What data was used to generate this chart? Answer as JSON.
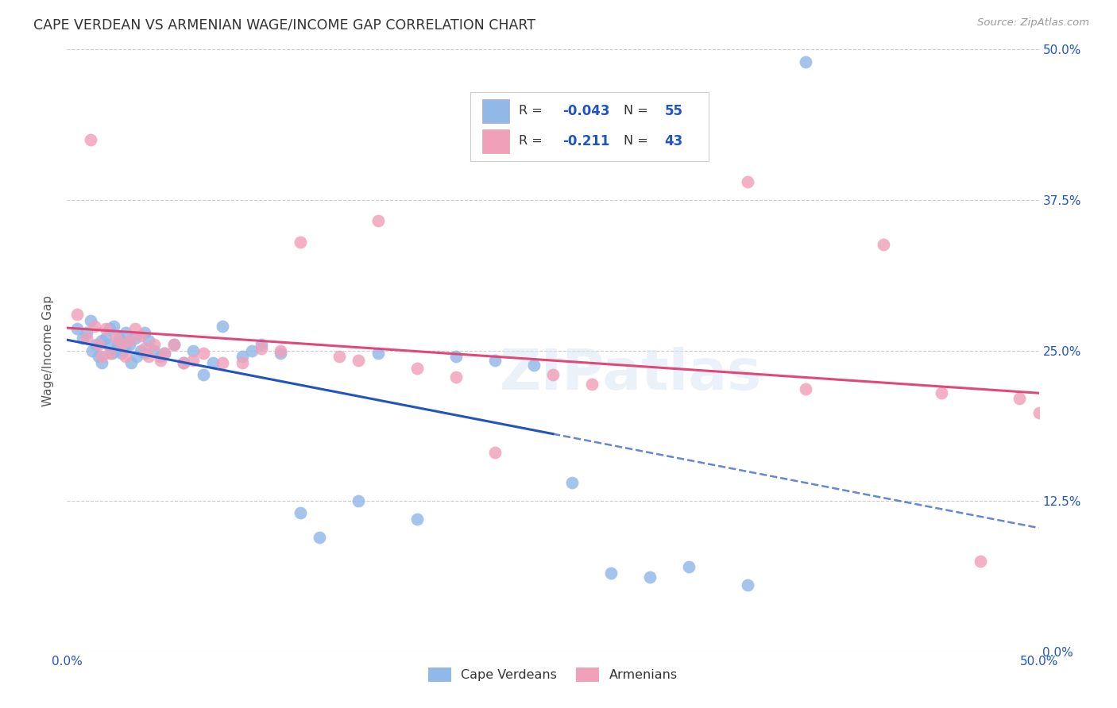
{
  "title": "CAPE VERDEAN VS ARMENIAN WAGE/INCOME GAP CORRELATION CHART",
  "source": "Source: ZipAtlas.com",
  "ylabel": "Wage/Income Gap",
  "xlim": [
    0.0,
    0.5
  ],
  "ylim": [
    0.0,
    0.5
  ],
  "cv_R": -0.043,
  "cv_N": 55,
  "arm_R": -0.211,
  "arm_N": 43,
  "cv_color": "#92b8e8",
  "arm_color": "#f0a0b8",
  "line_cv_color": "#2255bb",
  "line_arm_color": "#e04878",
  "watermark": "ZIPatlas",
  "bg_color": "#ffffff",
  "legend_color": "#2255bb",
  "cv_x": [
    0.005,
    0.008,
    0.01,
    0.012,
    0.013,
    0.015,
    0.016,
    0.018,
    0.018,
    0.02,
    0.021,
    0.022,
    0.023,
    0.024,
    0.025,
    0.026,
    0.027,
    0.028,
    0.03,
    0.03,
    0.032,
    0.033,
    0.035,
    0.036,
    0.038,
    0.04,
    0.04,
    0.042,
    0.045,
    0.048,
    0.05,
    0.055,
    0.06,
    0.065,
    0.07,
    0.075,
    0.08,
    0.09,
    0.095,
    0.1,
    0.11,
    0.12,
    0.13,
    0.15,
    0.16,
    0.18,
    0.2,
    0.22,
    0.24,
    0.26,
    0.28,
    0.3,
    0.32,
    0.35,
    0.38
  ],
  "cv_y": [
    0.268,
    0.26,
    0.265,
    0.275,
    0.25,
    0.255,
    0.245,
    0.258,
    0.24,
    0.26,
    0.255,
    0.268,
    0.248,
    0.27,
    0.25,
    0.255,
    0.26,
    0.248,
    0.265,
    0.255,
    0.255,
    0.24,
    0.26,
    0.245,
    0.25,
    0.265,
    0.248,
    0.258,
    0.25,
    0.245,
    0.248,
    0.255,
    0.24,
    0.25,
    0.23,
    0.24,
    0.27,
    0.245,
    0.25,
    0.255,
    0.248,
    0.115,
    0.095,
    0.125,
    0.248,
    0.11,
    0.245,
    0.242,
    0.238,
    0.14,
    0.065,
    0.062,
    0.07,
    0.055,
    0.49
  ],
  "arm_x": [
    0.005,
    0.01,
    0.012,
    0.014,
    0.016,
    0.018,
    0.02,
    0.022,
    0.025,
    0.028,
    0.03,
    0.032,
    0.035,
    0.038,
    0.04,
    0.042,
    0.045,
    0.048,
    0.05,
    0.055,
    0.06,
    0.065,
    0.07,
    0.08,
    0.09,
    0.1,
    0.11,
    0.12,
    0.14,
    0.15,
    0.16,
    0.18,
    0.2,
    0.22,
    0.25,
    0.27,
    0.35,
    0.38,
    0.42,
    0.45,
    0.47,
    0.49,
    0.5
  ],
  "arm_y": [
    0.28,
    0.26,
    0.425,
    0.27,
    0.255,
    0.245,
    0.268,
    0.248,
    0.26,
    0.255,
    0.245,
    0.258,
    0.268,
    0.262,
    0.252,
    0.245,
    0.255,
    0.242,
    0.248,
    0.255,
    0.24,
    0.242,
    0.248,
    0.24,
    0.24,
    0.252,
    0.25,
    0.34,
    0.245,
    0.242,
    0.358,
    0.235,
    0.228,
    0.165,
    0.23,
    0.222,
    0.39,
    0.218,
    0.338,
    0.215,
    0.075,
    0.21,
    0.198
  ]
}
